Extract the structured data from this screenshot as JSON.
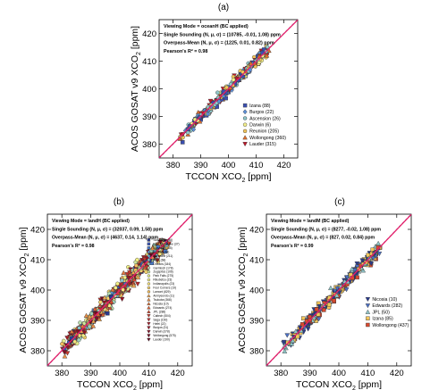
{
  "chart_data": [
    {
      "panel_label": "(a)",
      "type": "scatter",
      "xlabel": "TCCON XCO",
      "xlabel_sub": "2",
      "xlabel_unit": " [ppm]",
      "ylabel": "ACOS GOSAT v9 XCO",
      "ylabel_sub": "2",
      "ylabel_unit": " [ppm]",
      "xlim": [
        375,
        425
      ],
      "ylim": [
        375,
        425
      ],
      "xticks": [
        "380",
        "390",
        "400",
        "410",
        "420"
      ],
      "yticks": [
        "380",
        "390",
        "400",
        "410",
        "420"
      ],
      "annotations": [
        "Viewing Mode = oceanH (BC applied)",
        "Single Sounding (N, μ, σ) = (10785, -0.01, 1.08) ppm",
        "Overpass-Mean (N, μ, σ) = (1225, 0.01, 0.82) ppm",
        "Pearson's R² = 0.98"
      ],
      "one_to_one_line": true,
      "fit_line": true,
      "fit_color": "#e8206a",
      "point_range": [
        382,
        414
      ],
      "legend_position": "bottom-right",
      "legend": [
        {
          "label": "Izana (88)",
          "marker": "square",
          "color": "#3a4fb0"
        },
        {
          "label": "Burgos (22)",
          "marker": "diamond",
          "color": "#5c8fd6"
        },
        {
          "label": "Ascension (26)",
          "marker": "circle",
          "color": "#8fc6c9"
        },
        {
          "label": "Darwin (6)",
          "marker": "circle",
          "color": "#f4f08a"
        },
        {
          "label": "Reunion (205)",
          "marker": "circle",
          "color": "#f2c55a"
        },
        {
          "label": "Wollongong (360)",
          "marker": "triangle",
          "color": "#e26f2c"
        },
        {
          "label": "Lauder (315)",
          "marker": "triangle-down",
          "color": "#c0172a"
        }
      ]
    },
    {
      "panel_label": "(b)",
      "type": "scatter",
      "xlabel": "TCCON XCO",
      "xlabel_sub": "2",
      "xlabel_unit": " [ppm]",
      "ylabel": "ACOS GOSAT v9 XCO",
      "ylabel_sub": "2",
      "ylabel_unit": " [ppm]",
      "xlim": [
        375,
        425
      ],
      "ylim": [
        375,
        425
      ],
      "xticks": [
        "380",
        "390",
        "400",
        "410",
        "420"
      ],
      "yticks": [
        "380",
        "390",
        "400",
        "410",
        "420"
      ],
      "annotations": [
        "Viewing Mode = landH (BC applied)",
        "Single Sounding (N, μ, σ) = (32037, 0.09, 1.58) ppm",
        "Overpass-Mean (N, μ, σ) = (4637, 0.14, 1.14) ppm",
        "Pearson's R² = 0.98"
      ],
      "one_to_one_line": true,
      "fit_line": true,
      "fit_color": "#e8206a",
      "point_range": [
        380,
        416
      ],
      "legend_position": "right",
      "legend": [
        {
          "label": "Sodankyla (88)",
          "marker": "square",
          "color": "#2a3a8e"
        },
        {
          "label": "East Trout Lake (37)",
          "marker": "square",
          "color": "#3a56b8"
        },
        {
          "label": "Bialystok (145)",
          "marker": "square",
          "color": "#4a7ccd"
        },
        {
          "label": "Bremen (63)",
          "marker": "diamond",
          "color": "#5a9ad8"
        },
        {
          "label": "Karlsruhe (211)",
          "marker": "diamond",
          "color": "#6fb2d6"
        },
        {
          "label": "Paris (68)",
          "marker": "circle",
          "color": "#86c6cc"
        },
        {
          "label": "Orleans (184)",
          "marker": "circle",
          "color": "#9fd4bf"
        },
        {
          "label": "Garmisch (178)",
          "marker": "circle",
          "color": "#b8dfae"
        },
        {
          "label": "Zugspitze (106)",
          "marker": "circle",
          "color": "#cfe89c"
        },
        {
          "label": "Park Falls (275)",
          "marker": "circle",
          "color": "#e4ee8c"
        },
        {
          "label": "Rikubetsu (23)",
          "marker": "circle",
          "color": "#f2ef86"
        },
        {
          "label": "Indianapolis (23)",
          "marker": "circle",
          "color": "#f6e27a"
        },
        {
          "label": "Four Corners (19)",
          "marker": "circle",
          "color": "#f4d06c"
        },
        {
          "label": "Lamont (829)",
          "marker": "circle",
          "color": "#f2bd5e"
        },
        {
          "label": "Anmyeondo (11)",
          "marker": "triangle",
          "color": "#eea652"
        },
        {
          "label": "Tsukuba (368)",
          "marker": "triangle",
          "color": "#ea8f47"
        },
        {
          "label": "Nicosia (10)",
          "marker": "triangle",
          "color": "#e4773d"
        },
        {
          "label": "Edwards (274)",
          "marker": "triangle",
          "color": "#dc6035"
        },
        {
          "label": "JPL (286)",
          "marker": "triangle",
          "color": "#d24a2f"
        },
        {
          "label": "Caltech (504)",
          "marker": "triangle-down",
          "color": "#c6362b"
        },
        {
          "label": "Saga (150)",
          "marker": "triangle-down",
          "color": "#b82628"
        },
        {
          "label": "Hefei (22)",
          "marker": "triangle-down",
          "color": "#a81a26"
        },
        {
          "label": "Burgos (31)",
          "marker": "triangle-down",
          "color": "#981225"
        },
        {
          "label": "Darwin (378)",
          "marker": "triangle-down",
          "color": "#860c22"
        },
        {
          "label": "Wollongong (575)",
          "marker": "triangle-down",
          "color": "#74081f"
        },
        {
          "label": "Lauder (190)",
          "marker": "triangle-down",
          "color": "#62061c"
        }
      ]
    },
    {
      "panel_label": "(c)",
      "type": "scatter",
      "xlabel": "TCCON XCO",
      "xlabel_sub": "2",
      "xlabel_unit": " [ppm]",
      "ylabel": "ACOS GOSAT v9 XCO",
      "ylabel_sub": "2",
      "ylabel_unit": " [ppm]",
      "xlim": [
        375,
        425
      ],
      "ylim": [
        375,
        425
      ],
      "xticks": [
        "380",
        "390",
        "400",
        "410",
        "420"
      ],
      "yticks": [
        "380",
        "390",
        "400",
        "410",
        "420"
      ],
      "annotations": [
        "Viewing Mode = landM (BC applied)",
        "Single Sounding (N, μ, σ) = (8277, -0.02, 1.08) ppm",
        "Overpass-Mean (N, μ, σ) = (827, 0.02, 0.84) ppm",
        "Pearson's R² = 0.99"
      ],
      "one_to_one_line": true,
      "fit_line": true,
      "fit_color": "#e8206a",
      "point_range": [
        381,
        414
      ],
      "legend_position": "bottom-right",
      "legend": [
        {
          "label": "Nicosia (10)",
          "marker": "triangle-down",
          "color": "#2a3a8e"
        },
        {
          "label": "Edwards (282)",
          "marker": "triangle-down",
          "color": "#4a6fc4"
        },
        {
          "label": "JPL (50)",
          "marker": "triangle",
          "color": "#8fc6c9"
        },
        {
          "label": "Izana (85)",
          "marker": "square",
          "color": "#f2c55a"
        },
        {
          "label": "Wollongong (437)",
          "marker": "square",
          "color": "#d84a2f"
        }
      ]
    }
  ]
}
